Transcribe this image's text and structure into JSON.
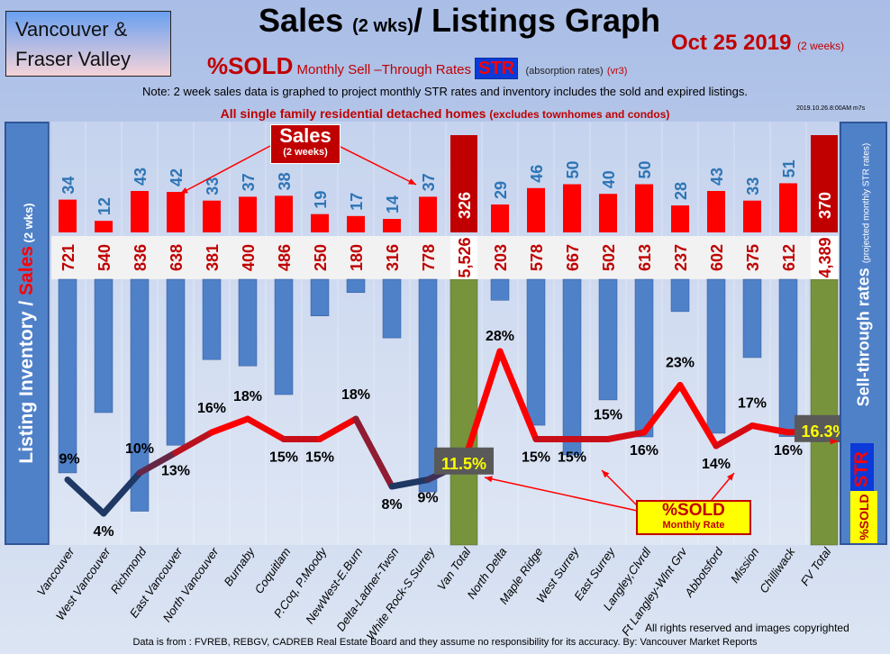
{
  "header": {
    "brand_line1": "Vancouver &",
    "brand_line2": "Fraser Valley",
    "title_main": "Sales",
    "title_small": "(2 wks)",
    "title_rest": "/ Listings Graph",
    "date": "Oct 25 2019",
    "date_note": "(2 weeks)",
    "sub_sold": "%SOLD",
    "sub_rates": "Monthly Sell –Through Rates",
    "sub_str": "STR",
    "sub_abs": "(absorption rates)",
    "sub_ver": "(vr3)",
    "note": "Note: 2 week sales data is graphed to project monthly STR rates and inventory includes the sold and expired listings.",
    "headline": "All single family residential detached homes",
    "headline_small": "(excludes townhomes and condos)",
    "stamp": "2019.10.26.8:00AM m7s"
  },
  "left_panel": {
    "text1": "Listing Inventory / ",
    "text2": "Sales",
    "text3": " (2 wks)"
  },
  "right_panel": {
    "text": "Sell-through rates",
    "small": "(projected monthly STR rates)",
    "str": "STR",
    "sold": "%SOLD"
  },
  "annotations": {
    "sales": "Sales",
    "sales_sub": "(2 weeks)",
    "sold": "%SOLD",
    "sold_sub": "Monthly Rate"
  },
  "footer": {
    "copyright": "All rights reserved and  images copyrighted",
    "source": "Data is from : FVREB, REBGV, CADREB Real Estate Board and they assume no responsibility for its accuracy. By: Vancouver Market Reports"
  },
  "colors": {
    "sales": "#ff0000",
    "listings": "#4f81c9",
    "total": "#77933c",
    "total_sales": "#c00000",
    "line_low": "#1f3864",
    "line_high": "#ff0000"
  },
  "chart_data": {
    "type": "bar",
    "title": "Sales (2 wks)/ Listings Graph",
    "categories": [
      "Vancouver",
      "West Vancouver",
      "Richmond",
      "East Vancouver",
      "North Vancouver",
      "Burnaby",
      "Coquitlam",
      "P.Coq, P.Moody",
      "NewWest-E.Burn",
      "Delta-Ladner-Twsn",
      "White Rock-S.Surrey",
      "Van Total",
      "North Delta",
      "Maple Ridge",
      "West Surrey",
      "East Surrey",
      "Langley,Clvrdl",
      "Ft Langley-Wlnt Grv",
      "Abbotsford",
      "Mission",
      "Chilliwack",
      "FV Total"
    ],
    "series": [
      {
        "name": "Sales (2 weeks)",
        "values": [
          34,
          12,
          43,
          42,
          33,
          37,
          38,
          19,
          17,
          14,
          37,
          326,
          29,
          46,
          50,
          40,
          50,
          28,
          43,
          33,
          51,
          370
        ]
      },
      {
        "name": "Listing Inventory",
        "values": [
          721,
          540,
          836,
          638,
          381,
          400,
          486,
          250,
          180,
          316,
          778,
          5526,
          203,
          578,
          667,
          502,
          613,
          237,
          602,
          375,
          612,
          4389
        ]
      },
      {
        "name": "%SOLD Monthly Rate",
        "type": "line",
        "values": [
          9,
          4,
          10,
          13,
          16,
          18,
          15,
          15,
          18,
          8,
          9,
          11.5,
          28,
          15,
          15,
          15,
          16,
          23,
          14,
          17,
          16,
          16.3
        ]
      }
    ],
    "percent_labels": [
      "9%",
      "4%",
      "10%",
      "13%",
      "16%",
      "18%",
      "15%",
      "15%",
      "18%",
      "8%",
      "9%",
      "11.5%",
      "28%",
      "15%",
      "15%",
      "15%",
      "16%",
      "23%",
      "14%",
      "17%",
      "16%",
      "16.3%"
    ],
    "listing_labels": [
      "721",
      "540",
      "836",
      "638",
      "381",
      "400",
      "486",
      "250",
      "180",
      "316",
      "778",
      "5,526",
      "203",
      "578",
      "667",
      "502",
      "613",
      "237",
      "602",
      "375",
      "612",
      "4,389"
    ],
    "totals": [
      "Van Total",
      "FV Total"
    ]
  }
}
